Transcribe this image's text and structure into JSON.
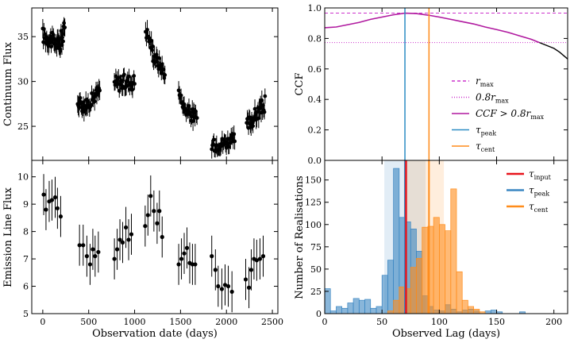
{
  "chart_data": [
    {
      "id": "continuum",
      "type": "scatter",
      "xlabel": "",
      "ylabel": "Continuum Flux",
      "xlim": [
        -120,
        2560
      ],
      "ylim": [
        21.2,
        38.2
      ],
      "xticks": [
        0,
        500,
        1000,
        1500,
        2000,
        2500
      ],
      "xtick_labels_shown": false,
      "yticks": [
        25,
        30,
        35
      ],
      "ytick_labels": [
        "25",
        "30",
        "35"
      ],
      "segments": [
        {
          "x_start": 0,
          "x_end": 190,
          "y_start": 35.2,
          "y_end": 34.0,
          "amp": 0.9,
          "n": 32
        },
        {
          "x_start": 190,
          "x_end": 240,
          "y_start": 34.5,
          "y_end": 35.8,
          "amp": 1.0,
          "n": 12
        },
        {
          "x_start": 380,
          "x_end": 470,
          "y_start": 28.0,
          "y_end": 27.0,
          "amp": 0.8,
          "n": 14
        },
        {
          "x_start": 470,
          "x_end": 620,
          "y_start": 27.3,
          "y_end": 29.0,
          "amp": 0.7,
          "n": 20
        },
        {
          "x_start": 780,
          "x_end": 1000,
          "y_start": 29.8,
          "y_end": 30.0,
          "amp": 0.9,
          "n": 30
        },
        {
          "x_start": 1120,
          "x_end": 1200,
          "y_start": 35.8,
          "y_end": 33.5,
          "amp": 0.8,
          "n": 10
        },
        {
          "x_start": 1200,
          "x_end": 1330,
          "y_start": 33.0,
          "y_end": 31.0,
          "amp": 0.8,
          "n": 18
        },
        {
          "x_start": 1480,
          "x_end": 1540,
          "y_start": 28.8,
          "y_end": 27.2,
          "amp": 0.5,
          "n": 8
        },
        {
          "x_start": 1540,
          "x_end": 1680,
          "y_start": 27.0,
          "y_end": 25.8,
          "amp": 0.8,
          "n": 20
        },
        {
          "x_start": 1840,
          "x_end": 2090,
          "y_start": 22.8,
          "y_end": 23.5,
          "amp": 0.7,
          "n": 34
        },
        {
          "x_start": 2220,
          "x_end": 2420,
          "y_start": 25.0,
          "y_end": 27.5,
          "amp": 0.9,
          "n": 30
        }
      ]
    },
    {
      "id": "emission",
      "type": "scatter",
      "xlabel": "Observation date (days)",
      "ylabel": "Emission Line Flux",
      "xlim": [
        -120,
        2560
      ],
      "ylim": [
        5.0,
        10.6
      ],
      "xticks": [
        0,
        500,
        1000,
        1500,
        2000,
        2500
      ],
      "xtick_labels": [
        "0",
        "500",
        "1000",
        "1500",
        "2000",
        "2500"
      ],
      "yticks": [
        5,
        6,
        7,
        8,
        9,
        10
      ],
      "ytick_labels": [
        "5",
        "6",
        "7",
        "8",
        "9",
        "10"
      ],
      "error": 0.75,
      "x": [
        10,
        35,
        70,
        100,
        135,
        160,
        195,
        400,
        440,
        480,
        515,
        545,
        570,
        605,
        780,
        810,
        840,
        870,
        905,
        935,
        965,
        1115,
        1145,
        1175,
        1210,
        1245,
        1270,
        1300,
        1480,
        1510,
        1540,
        1570,
        1600,
        1630,
        1660,
        1840,
        1880,
        1910,
        1950,
        1985,
        2020,
        2060,
        2210,
        2245,
        2270,
        2300,
        2330,
        2365,
        2400
      ],
      "y": [
        9.35,
        8.8,
        9.1,
        9.15,
        9.25,
        8.85,
        8.55,
        7.5,
        7.5,
        7.1,
        6.8,
        7.35,
        7.1,
        7.25,
        7.0,
        7.35,
        7.7,
        7.6,
        8.15,
        7.7,
        7.9,
        8.2,
        8.6,
        9.3,
        8.75,
        8.3,
        8.75,
        7.8,
        6.8,
        7.0,
        7.2,
        7.4,
        6.85,
        6.8,
        6.8,
        7.1,
        6.6,
        6.0,
        5.9,
        6.05,
        6.0,
        5.8,
        6.25,
        5.95,
        6.6,
        7.0,
        6.95,
        7.0,
        7.1
      ]
    },
    {
      "id": "ccf",
      "type": "line",
      "xlabel": "",
      "ylabel": "CCF",
      "xlim": [
        0,
        212
      ],
      "ylim": [
        0.0,
        1.0
      ],
      "xticks": [
        0,
        50,
        100,
        150,
        200
      ],
      "xtick_labels_shown": false,
      "yticks": [
        0.0,
        0.2,
        0.4,
        0.6,
        0.8,
        1.0
      ],
      "ytick_labels": [
        "0.0",
        "0.2",
        "0.4",
        "0.6",
        "0.8",
        "1.0"
      ],
      "r_max": 0.966,
      "threshold_factor": 0.8,
      "tau_peak": 70,
      "tau_cent": 91,
      "curve": {
        "x": [
          0,
          10,
          20,
          30,
          40,
          50,
          60,
          70,
          80,
          90,
          100,
          110,
          120,
          130,
          140,
          150,
          160,
          170,
          180,
          190,
          200,
          205,
          212
        ],
        "y": [
          0.87,
          0.875,
          0.89,
          0.905,
          0.925,
          0.94,
          0.955,
          0.966,
          0.963,
          0.953,
          0.94,
          0.925,
          0.91,
          0.895,
          0.875,
          0.858,
          0.84,
          0.817,
          0.795,
          0.765,
          0.735,
          0.71,
          0.665
        ]
      },
      "legend": {
        "position": "lower-right",
        "entries": [
          {
            "label": "r",
            "sub": "max",
            "style": "dashed",
            "color": "#cc33cc"
          },
          {
            "label": "0.8r",
            "sub": "max",
            "style": "dotted",
            "color": "#cc33cc"
          },
          {
            "label": "CCF > 0.8r",
            "sub": "max",
            "style": "solid",
            "color": "#b0199f"
          },
          {
            "label": "τ",
            "sub": "peak",
            "style": "solid",
            "color": "#2b8cc4"
          },
          {
            "label": "τ",
            "sub": "cent",
            "style": "solid",
            "color": "#ff8c1a"
          }
        ]
      }
    },
    {
      "id": "lag-histogram",
      "type": "bar",
      "xlabel": "Observed Lag (days)",
      "ylabel": "Number of Realisations",
      "xlim": [
        0,
        212
      ],
      "ylim": [
        0,
        172
      ],
      "xticks": [
        0,
        50,
        100,
        150,
        200
      ],
      "xtick_labels": [
        "0",
        "50",
        "100",
        "150",
        "200"
      ],
      "yticks": [
        0,
        25,
        50,
        75,
        100,
        125,
        150
      ],
      "ytick_labels": [
        "0",
        "25",
        "50",
        "75",
        "100",
        "125",
        "150"
      ],
      "bin_width": 5,
      "bin_start": 0,
      "tau_input": 71,
      "peak_band": [
        52,
        70,
        88
      ],
      "cent_band": [
        69,
        91,
        104
      ],
      "series": [
        {
          "name": "peak",
          "color": "#3a86c2",
          "values": [
            28,
            3,
            8,
            6,
            12,
            17,
            15,
            16,
            6,
            8,
            43,
            60,
            163,
            108,
            103,
            95,
            70,
            20,
            8,
            4,
            3,
            10,
            5,
            2,
            4,
            5,
            3,
            0,
            3,
            4,
            2,
            0,
            0,
            0,
            2,
            0,
            0,
            0,
            0,
            0,
            0,
            0
          ]
        },
        {
          "name": "cent",
          "color": "#ff8c1a",
          "values": [
            0,
            0,
            0,
            0,
            0,
            0,
            0,
            0,
            0,
            0,
            0,
            3,
            15,
            30,
            28,
            52,
            62,
            97,
            98,
            108,
            100,
            93,
            140,
            47,
            15,
            8,
            5,
            2,
            0,
            0,
            0,
            0,
            0,
            0,
            0,
            0,
            0,
            0,
            0,
            0,
            0,
            0
          ]
        }
      ],
      "legend": {
        "position": "top-right",
        "entries": [
          {
            "label": "τ",
            "sub": "input",
            "color": "#e8141c"
          },
          {
            "label": "τ",
            "sub": "peak",
            "color": "#3a86c2"
          },
          {
            "label": "τ",
            "sub": "cent",
            "color": "#ff8c1a"
          }
        ]
      }
    }
  ]
}
